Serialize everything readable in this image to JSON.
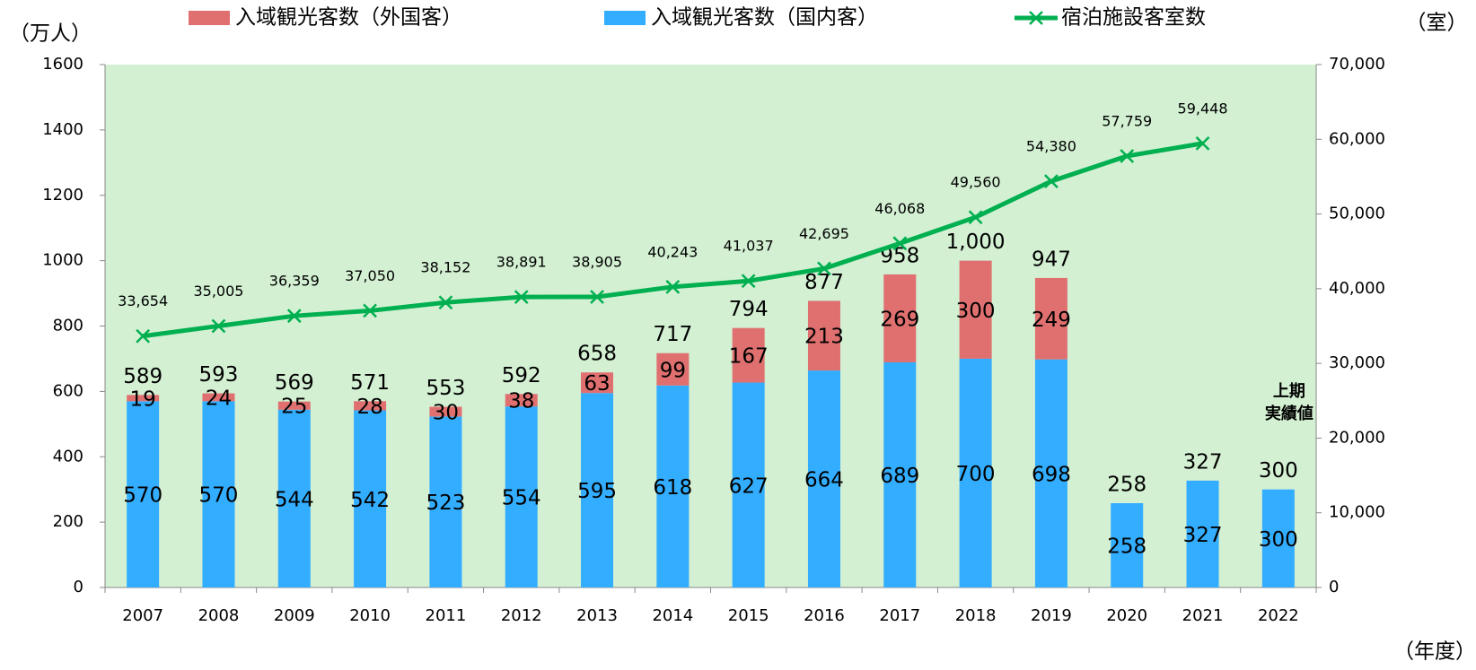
{
  "chart_data": {
    "type": "bar",
    "y_axis_label": "（万人）",
    "y2_axis_label": "（室）",
    "x_axis_label": "（年度）",
    "annotation": "上期\n実績値",
    "categories": [
      "2007",
      "2008",
      "2009",
      "2010",
      "2011",
      "2012",
      "2013",
      "2014",
      "2015",
      "2016",
      "2017",
      "2018",
      "2019",
      "2020",
      "2021",
      "2022"
    ],
    "series": [
      {
        "name": "入域観光客数（外国客）",
        "type": "bar",
        "color": "#e07070",
        "values": [
          19,
          24,
          25,
          28,
          30,
          38,
          63,
          99,
          167,
          213,
          269,
          300,
          249,
          null,
          null,
          null
        ]
      },
      {
        "name": "入域観光客数（国内客）",
        "type": "bar",
        "color": "#33adff",
        "values": [
          570,
          570,
          544,
          542,
          523,
          554,
          595,
          618,
          627,
          664,
          689,
          700,
          698,
          258,
          327,
          300
        ]
      },
      {
        "name": "宿泊施設客室数",
        "type": "line",
        "axis": "y2",
        "color": "#00b050",
        "values": [
          33654,
          35005,
          36359,
          37050,
          38152,
          38891,
          38905,
          40243,
          41037,
          42695,
          46068,
          49560,
          54380,
          57759,
          59448,
          null
        ],
        "value_labels": [
          "33,654",
          "35,005",
          "36,359",
          "37,050",
          "38,152",
          "38,891",
          "38,905",
          "40,243",
          "41,037",
          "42,695",
          "46,068",
          "49,560",
          "54,380",
          "57,759",
          "59,448",
          null
        ]
      }
    ],
    "totals": {
      "values": [
        589,
        593,
        569,
        571,
        553,
        592,
        658,
        717,
        794,
        877,
        958,
        1000,
        947,
        258,
        327,
        300
      ],
      "value_labels": [
        "589",
        "593",
        "569",
        "571",
        "553",
        "592",
        "658",
        "717",
        "794",
        "877",
        "958",
        "1,000",
        "947",
        "258",
        "327",
        "300"
      ]
    },
    "ylim": [
      0,
      1600
    ],
    "yticks": [
      0,
      200,
      400,
      600,
      800,
      1000,
      1200,
      1400,
      1600
    ],
    "y2lim": [
      0,
      70000
    ],
    "y2ticks": [
      0,
      {
        "value": 10000,
        "label": "10,000"
      },
      {
        "value": 20000,
        "label": "20,000"
      },
      {
        "value": 30000,
        "label": "30,000"
      },
      {
        "value": 40000,
        "label": "40,000"
      },
      {
        "value": 50000,
        "label": "50,000"
      },
      {
        "value": 60000,
        "label": "60,000"
      },
      {
        "value": 70000,
        "label": "70,000"
      }
    ],
    "plot_background": "#d3f0d3"
  }
}
